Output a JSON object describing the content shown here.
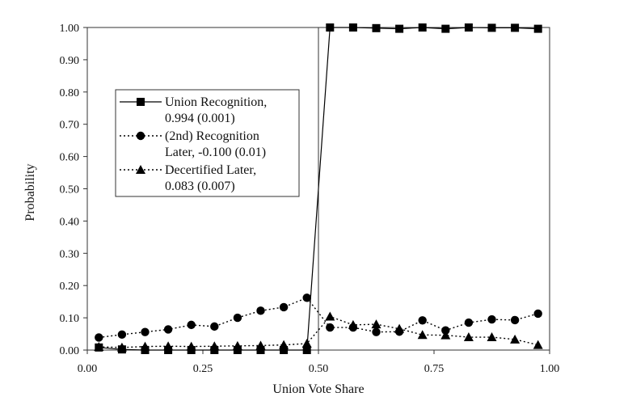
{
  "chart_data": {
    "type": "line",
    "title": "",
    "xlabel": "Union Vote Share",
    "ylabel": "Probability",
    "xlim": [
      0,
      1
    ],
    "ylim": [
      0,
      1
    ],
    "x_ticks": [
      "0.00",
      "0.25",
      "0.50",
      "0.75",
      "1.00"
    ],
    "y_ticks": [
      "0.00",
      "0.10",
      "0.20",
      "0.30",
      "0.40",
      "0.50",
      "0.60",
      "0.70",
      "0.80",
      "0.90",
      "1.00"
    ],
    "threshold_x": 0.5,
    "grid": false,
    "legend_position": "upper-left inside plot",
    "x": [
      0.025,
      0.075,
      0.125,
      0.175,
      0.225,
      0.275,
      0.325,
      0.375,
      0.425,
      0.475,
      0.525,
      0.575,
      0.625,
      0.675,
      0.725,
      0.775,
      0.825,
      0.875,
      0.925,
      0.975
    ],
    "series": [
      {
        "legend_line1": "Union Recognition,",
        "legend_line2": "0.994 (0.001)",
        "marker": "square",
        "line_style": "solid",
        "values": [
          0.008,
          0.002,
          0.0,
          0.0,
          0.0,
          0.0,
          0.0,
          0.0,
          0.0,
          0.0,
          1.0,
          1.0,
          0.998,
          0.996,
          1.0,
          0.996,
          1.0,
          0.999,
          0.999,
          0.996
        ]
      },
      {
        "legend_line1": "(2nd) Recognition",
        "legend_line2": "Later, -0.100 (0.01)",
        "marker": "circle",
        "line_style": "dotted",
        "values": [
          0.039,
          0.048,
          0.056,
          0.064,
          0.078,
          0.073,
          0.1,
          0.122,
          0.133,
          0.162,
          0.07,
          0.07,
          0.056,
          0.057,
          0.092,
          0.061,
          0.085,
          0.095,
          0.093,
          0.113
        ]
      },
      {
        "legend_line1": "Decertified Later,",
        "legend_line2": "0.083 (0.007)",
        "marker": "triangle",
        "line_style": "dotted",
        "values": [
          0.01,
          0.008,
          0.011,
          0.012,
          0.011,
          0.012,
          0.013,
          0.014,
          0.016,
          0.02,
          0.104,
          0.078,
          0.08,
          0.066,
          0.047,
          0.046,
          0.04,
          0.04,
          0.033,
          0.016
        ]
      }
    ]
  }
}
